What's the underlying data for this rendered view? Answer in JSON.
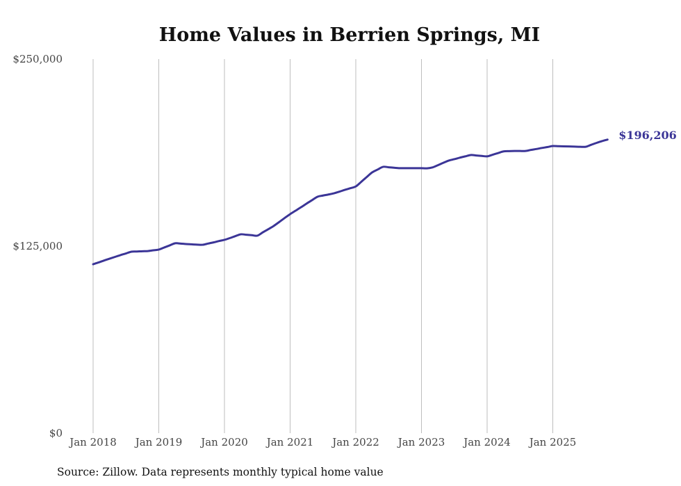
{
  "colors": {
    "line": "#3b3597",
    "grid": "#bdbdbd",
    "end_label": "#3b3597"
  },
  "chart_data": {
    "type": "line",
    "title": "Home Values in Berrien Springs, MI",
    "xlabel": "",
    "ylabel": "",
    "source": "Source: Zillow. Data represents monthly typical home value",
    "ylim": [
      0,
      250000
    ],
    "y_ticks": [
      0,
      125000,
      250000
    ],
    "y_tick_labels": [
      "$0",
      "$125,000",
      "$250,000"
    ],
    "x_ticks": [
      "Jan 2018",
      "Jan 2019",
      "Jan 2020",
      "Jan 2021",
      "Jan 2022",
      "Jan 2023",
      "Jan 2024",
      "Jan 2025"
    ],
    "x_start": "Jan 2018",
    "x_interval": "monthly",
    "grid": "vertical at x ticks",
    "end_label": "$196,206",
    "series": [
      {
        "name": "Typical home value",
        "values": [
          112900,
          114100,
          115400,
          116600,
          117800,
          119000,
          120100,
          121300,
          121400,
          121600,
          121700,
          122200,
          122700,
          124100,
          125500,
          126900,
          126700,
          126400,
          126200,
          126000,
          125900,
          126700,
          127500,
          128400,
          129200,
          130400,
          131700,
          132900,
          132600,
          132300,
          132000,
          134200,
          136300,
          138500,
          141100,
          143800,
          146400,
          148700,
          151000,
          153400,
          155700,
          158000,
          158800,
          159500,
          160300,
          161400,
          162600,
          163700,
          164900,
          168000,
          171200,
          174300,
          176200,
          178000,
          177700,
          177400,
          177100,
          177100,
          177100,
          177100,
          177100,
          177000,
          177600,
          179100,
          180700,
          182200,
          183100,
          184100,
          185000,
          185900,
          185600,
          185300,
          185000,
          186100,
          187200,
          188300,
          188500,
          188600,
          188600,
          188600,
          189300,
          189900,
          190600,
          191200,
          191900,
          191800,
          191700,
          191600,
          191500,
          191400,
          191400,
          192700,
          194000,
          195200,
          196206
        ]
      }
    ]
  }
}
